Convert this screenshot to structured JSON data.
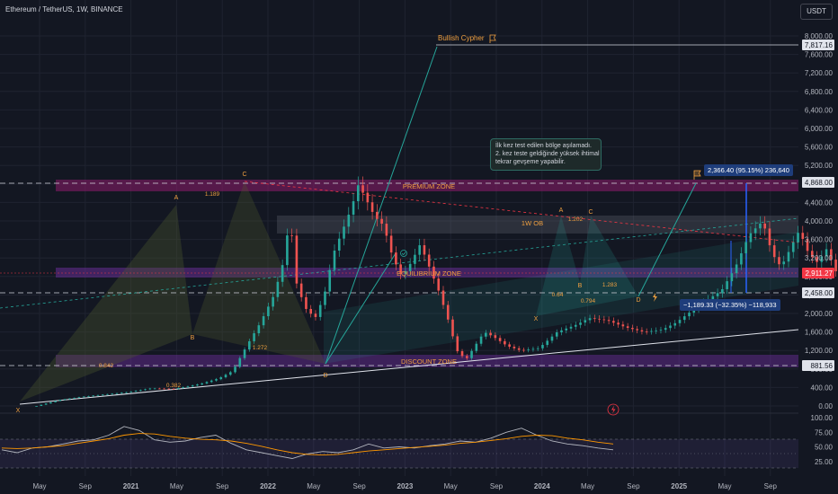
{
  "header": {
    "title": "Ethereum / TetherUS, 1W, BINANCE",
    "currency_button": "USDT"
  },
  "annotations": {
    "bullish_cypher": "Bullish Cypher",
    "premium_zone": "PREMIUM ZONE",
    "equilibrium_zone": "EQUILIBRIUM ZONE",
    "discount_zone": "DISCOUNT ZONE",
    "ob_label": "1W OB",
    "note_lines": [
      "İlk kez test edilen bölge aşılamadı.",
      "2. kez teste geldiğinde yüksek ihtimal",
      "tekrar gevşeme yapabilir."
    ],
    "measure_up": "2,366.40 (95.15%) 236,640",
    "measure_down": "−1,189.33 (−32.35%) −118,933",
    "pattern_points": [
      "X",
      "A",
      "B",
      "C",
      "D"
    ],
    "pattern_ratios_left": [
      "1.189",
      "1.272",
      "0.842",
      "0.382"
    ],
    "pattern_ratios_right": [
      "1.202",
      "0.64",
      "0.794",
      "1.283"
    ]
  },
  "chart_data": [
    {
      "type": "candlestick",
      "title": "Ethereum / TetherUS, 1W, BINANCE",
      "y_axis": {
        "scale": "custom",
        "ticks": [
          "8,000.00",
          "7,600.00",
          "7,200.00",
          "6,800.00",
          "6,400.00",
          "6,000.00",
          "5,600.00",
          "5,200.00",
          "4,800.00",
          "4,400.00",
          "4,000.00",
          "3,600.00",
          "3,200.00",
          "2,800.00",
          "2,400.00",
          "2,000.00",
          "1,600.00",
          "1,200.00",
          "800.00",
          "400.00",
          "0.00"
        ]
      },
      "x_axis": {
        "ticks": [
          "May",
          "Sep",
          "2021",
          "May",
          "Sep",
          "2022",
          "May",
          "Sep",
          "2023",
          "May",
          "Sep",
          "2024",
          "May",
          "Sep",
          "2025",
          "May",
          "Sep"
        ]
      },
      "price_labels": [
        {
          "value": "7,817.16",
          "color": "#e0e3eb",
          "text_color": "#131722"
        },
        {
          "value": "4,868.00",
          "color": "#e0e3eb",
          "text_color": "#131722"
        },
        {
          "value": "2,911.27",
          "color": "#f23645",
          "text_color": "#ffffff"
        },
        {
          "value": "2,458.00",
          "color": "#e0e3eb",
          "text_color": "#131722"
        },
        {
          "value": "881.56",
          "color": "#e0e3eb",
          "text_color": "#131722"
        }
      ],
      "price_path": [
        [
          0,
          0.0
        ],
        [
          0.5,
          130
        ],
        [
          1,
          200
        ],
        [
          1.5,
          250
        ],
        [
          2,
          300
        ],
        [
          2.5,
          380
        ],
        [
          3,
          370
        ],
        [
          3.3,
          420
        ],
        [
          3.6,
          480
        ],
        [
          4,
          600
        ],
        [
          4.3,
          760
        ],
        [
          4.6,
          1300
        ],
        [
          4.9,
          1800
        ],
        [
          5.2,
          2400
        ],
        [
          5.4,
          3100
        ],
        [
          5.55,
          4100
        ],
        [
          5.7,
          2600
        ],
        [
          5.9,
          2100
        ],
        [
          6.1,
          1900
        ],
        [
          6.3,
          2400
        ],
        [
          6.5,
          3300
        ],
        [
          6.7,
          3800
        ],
        [
          6.9,
          4300
        ],
        [
          7.05,
          4800
        ],
        [
          7.2,
          4500
        ],
        [
          7.4,
          4100
        ],
        [
          7.6,
          3900
        ],
        [
          7.8,
          3200
        ],
        [
          8,
          2800
        ],
        [
          8.2,
          3100
        ],
        [
          8.4,
          3500
        ],
        [
          8.6,
          3000
        ],
        [
          8.8,
          2500
        ],
        [
          9,
          1900
        ],
        [
          9.2,
          1200
        ],
        [
          9.4,
          1000
        ],
        [
          9.6,
          1300
        ],
        [
          9.8,
          1600
        ],
        [
          10,
          1500
        ],
        [
          10.3,
          1300
        ],
        [
          10.6,
          1200
        ],
        [
          11,
          1250
        ],
        [
          11.4,
          1600
        ],
        [
          11.8,
          1750
        ],
        [
          12.1,
          1900
        ],
        [
          12.5,
          1850
        ],
        [
          12.9,
          1700
        ],
        [
          13.3,
          1600
        ],
        [
          13.7,
          1650
        ],
        [
          14,
          1800
        ],
        [
          14.4,
          2100
        ],
        [
          14.7,
          2300
        ],
        [
          15,
          2500
        ],
        [
          15.3,
          3000
        ],
        [
          15.6,
          3700
        ],
        [
          15.9,
          4000
        ],
        [
          16.1,
          3300
        ],
        [
          16.3,
          3000
        ],
        [
          16.5,
          3400
        ],
        [
          16.7,
          3800
        ],
        [
          16.9,
          3300
        ],
        [
          17.1,
          3100
        ],
        [
          17.3,
          3400
        ],
        [
          17.5,
          2911
        ]
      ]
    },
    {
      "type": "line",
      "title": "RSI",
      "y_axis": {
        "ticks": [
          "100.00",
          "75.00",
          "50.00",
          "25.00"
        ]
      },
      "series": [
        {
          "values": [
            45,
            40,
            48,
            50,
            55,
            60,
            62,
            70,
            85,
            78,
            62,
            58,
            60,
            66,
            70,
            56,
            45,
            40,
            35,
            30,
            38,
            42,
            40,
            45,
            55,
            48,
            50,
            48,
            52,
            55,
            60,
            58,
            65,
            75,
            82,
            70,
            60,
            55,
            52,
            48,
            45
          ],
          "color": "#b2b5be"
        },
        {
          "values": [
            48,
            47,
            48,
            50,
            52,
            56,
            60,
            64,
            70,
            73,
            72,
            68,
            65,
            63,
            62,
            60,
            56,
            51,
            45,
            40,
            37,
            36,
            37,
            40,
            43,
            45,
            47,
            49,
            51,
            53,
            56,
            58,
            61,
            64,
            68,
            70,
            69,
            65,
            62,
            58,
            55
          ],
          "color": "#ff9800"
        }
      ]
    }
  ]
}
